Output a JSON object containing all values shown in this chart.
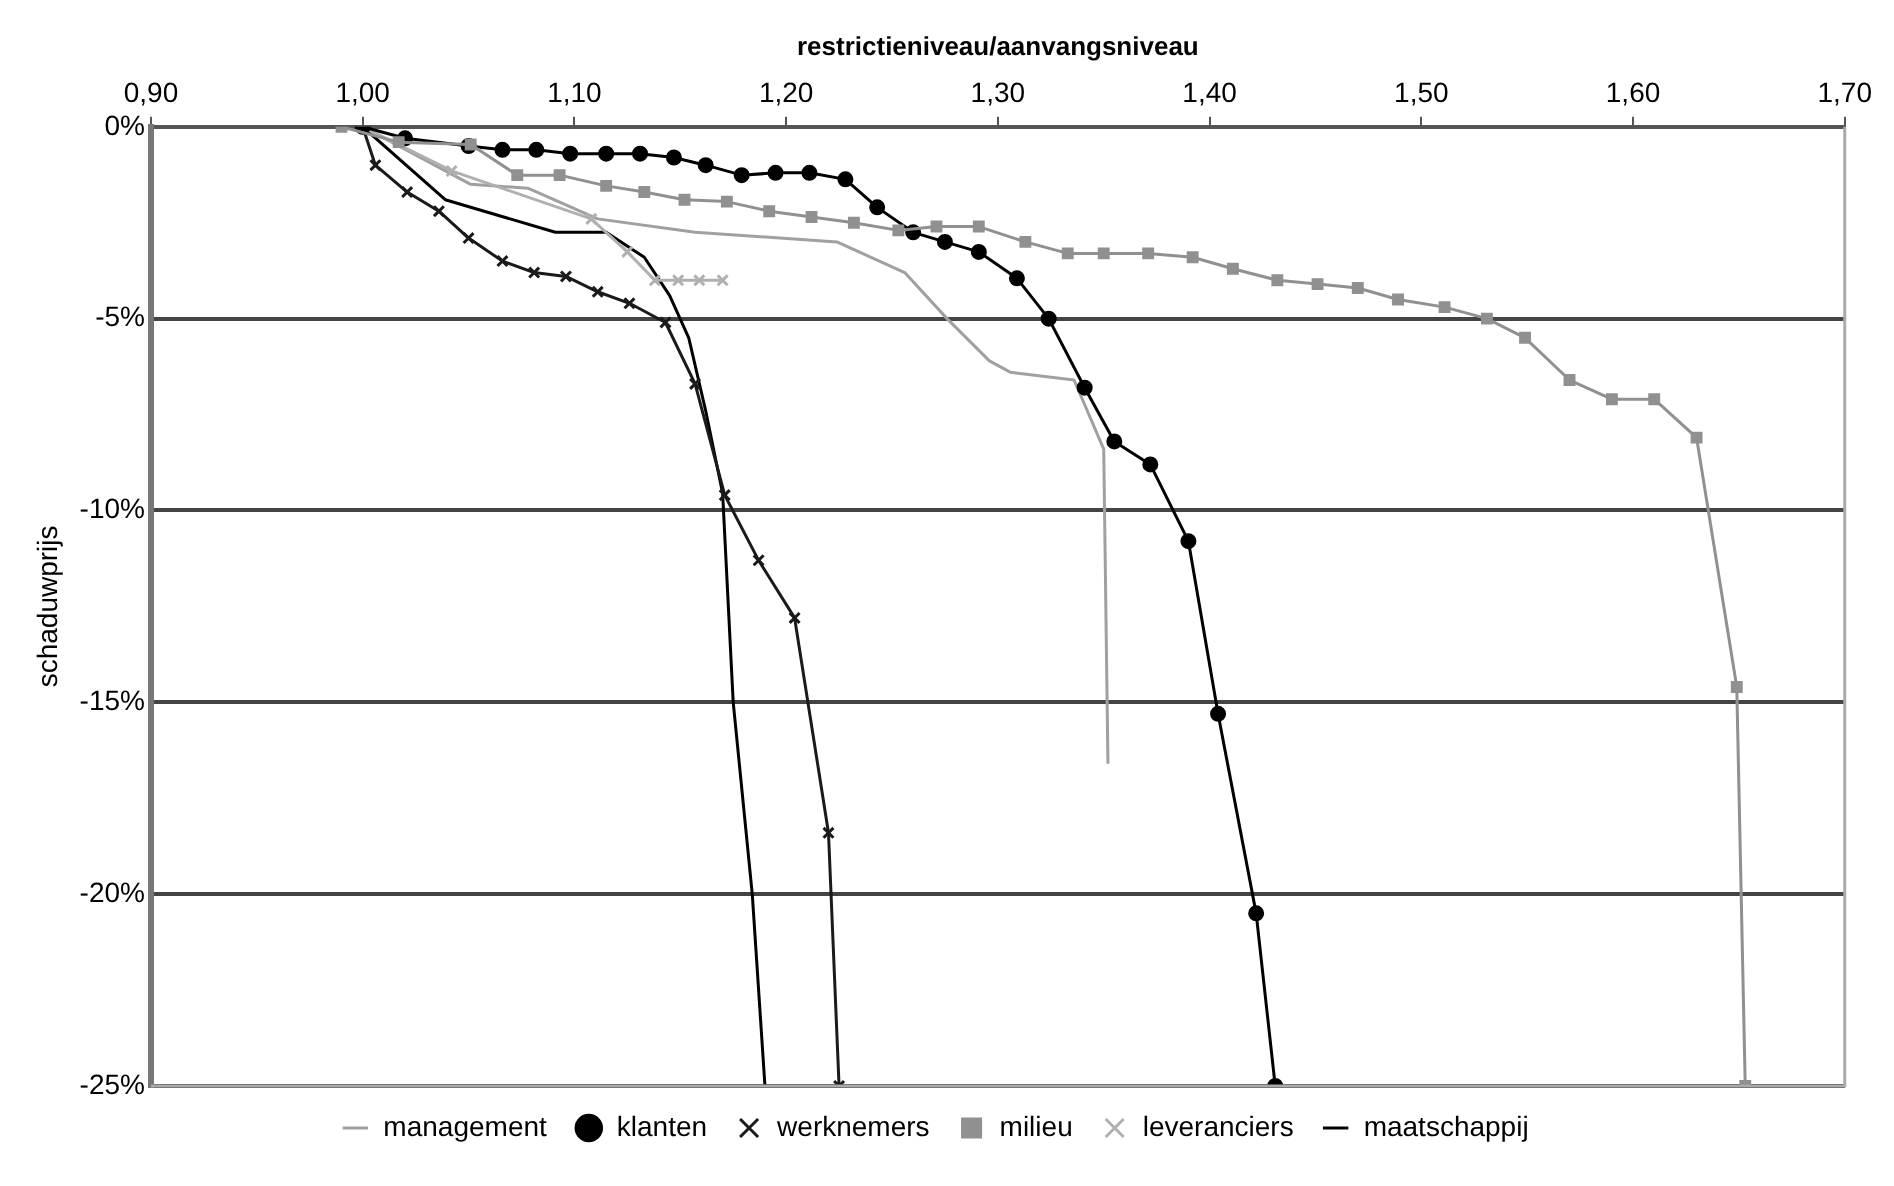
{
  "chart_data": {
    "type": "line",
    "xlabel": "restrictieniveau/aanvangsniveau",
    "ylabel": "schaduwprijs",
    "xlim": [
      0.9,
      1.7
    ],
    "xticks": [
      {
        "value": 0.9,
        "label": "0,90"
      },
      {
        "value": 1.0,
        "label": "1,00"
      },
      {
        "value": 1.1,
        "label": "1,10"
      },
      {
        "value": 1.2,
        "label": "1,20"
      },
      {
        "value": 1.3,
        "label": "1,30"
      },
      {
        "value": 1.4,
        "label": "1,40"
      },
      {
        "value": 1.5,
        "label": "1,50"
      },
      {
        "value": 1.6,
        "label": "1,60"
      },
      {
        "value": 1.7,
        "label": "1,70"
      }
    ],
    "ylim": [
      -25,
      0
    ],
    "yticks": [
      {
        "value": 0,
        "label": "0%"
      },
      {
        "value": -5,
        "label": "-5%"
      },
      {
        "value": -10,
        "label": "-10%"
      },
      {
        "value": -15,
        "label": "-15%"
      },
      {
        "value": -20,
        "label": "-20%"
      },
      {
        "value": -25,
        "label": "-25%"
      }
    ],
    "grid": "y",
    "legend": "bottom",
    "line_style": "solid",
    "series": [
      {
        "name": "management",
        "color": "#a0a0a0",
        "marker": "none",
        "x": [
          1.0,
          1.051,
          1.078,
          1.111,
          1.157,
          1.224,
          1.256,
          1.276,
          1.296,
          1.306,
          1.336,
          1.35,
          1.352
        ],
        "values": [
          0,
          -1.5,
          -1.6,
          -2.4,
          -2.75,
          -3.0,
          -3.8,
          -5.0,
          -6.1,
          -6.4,
          -6.6,
          -8.4,
          -16.6
        ]
      },
      {
        "name": "klanten",
        "color": "#000000",
        "marker": "circle",
        "x": [
          1.0,
          1.02,
          1.05,
          1.066,
          1.082,
          1.098,
          1.115,
          1.131,
          1.147,
          1.162,
          1.179,
          1.195,
          1.211,
          1.228,
          1.243,
          1.26,
          1.275,
          1.291,
          1.309,
          1.324,
          1.341,
          1.355,
          1.372,
          1.39,
          1.404,
          1.422,
          1.431
        ],
        "values": [
          0,
          -0.3,
          -0.5,
          -0.6,
          -0.6,
          -0.7,
          -0.7,
          -0.7,
          -0.8,
          -1.0,
          -1.26,
          -1.2,
          -1.2,
          -1.37,
          -2.1,
          -2.75,
          -3.0,
          -3.26,
          -3.95,
          -5.0,
          -6.8,
          -8.2,
          -8.8,
          -10.8,
          -15.3,
          -20.5,
          -25
        ]
      },
      {
        "name": "werknemers",
        "color": "#1a1a1a",
        "marker": "cross",
        "x": [
          1.0,
          1.006,
          1.021,
          1.036,
          1.05,
          1.066,
          1.081,
          1.096,
          1.111,
          1.126,
          1.143,
          1.157,
          1.171,
          1.187,
          1.204,
          1.22,
          1.225
        ],
        "values": [
          0,
          -1.0,
          -1.7,
          -2.2,
          -2.9,
          -3.5,
          -3.8,
          -3.9,
          -4.3,
          -4.6,
          -5.1,
          -6.7,
          -9.6,
          -11.3,
          -12.8,
          -18.4,
          -25
        ]
      },
      {
        "name": "milieu",
        "color": "#909090",
        "marker": "square",
        "x": [
          0.99,
          1.017,
          1.051,
          1.073,
          1.093,
          1.115,
          1.133,
          1.152,
          1.172,
          1.192,
          1.212,
          1.232,
          1.253,
          1.271,
          1.291,
          1.313,
          1.333,
          1.35,
          1.371,
          1.392,
          1.411,
          1.432,
          1.451,
          1.47,
          1.489,
          1.511,
          1.531,
          1.549,
          1.57,
          1.59,
          1.61,
          1.63,
          1.649,
          1.653
        ],
        "values": [
          0,
          -0.4,
          -0.46,
          -1.26,
          -1.26,
          -1.54,
          -1.7,
          -1.9,
          -1.95,
          -2.2,
          -2.35,
          -2.5,
          -2.7,
          -2.6,
          -2.6,
          -3.0,
          -3.3,
          -3.3,
          -3.3,
          -3.4,
          -3.7,
          -4.0,
          -4.1,
          -4.2,
          -4.5,
          -4.7,
          -5.0,
          -5.5,
          -6.6,
          -7.1,
          -7.1,
          -8.1,
          -14.6,
          -25
        ]
      },
      {
        "name": "leveranciers",
        "color": "#b0b0b0",
        "marker": "cross",
        "x": [
          1.0,
          1.042,
          1.108,
          1.125,
          1.138,
          1.149,
          1.159,
          1.17
        ],
        "values": [
          0,
          -1.15,
          -2.4,
          -3.26,
          -4.0,
          -4.0,
          -4.0,
          -4.0
        ]
      },
      {
        "name": "maatschappij",
        "color": "#000000",
        "marker": "none",
        "x": [
          1.0,
          1.039,
          1.091,
          1.115,
          1.133,
          1.145,
          1.154,
          1.162,
          1.17,
          1.175,
          1.184,
          1.19
        ],
        "values": [
          0,
          -1.9,
          -2.75,
          -2.75,
          -3.4,
          -4.4,
          -5.5,
          -7.4,
          -9.55,
          -15.0,
          -20.0,
          -25
        ]
      }
    ]
  }
}
